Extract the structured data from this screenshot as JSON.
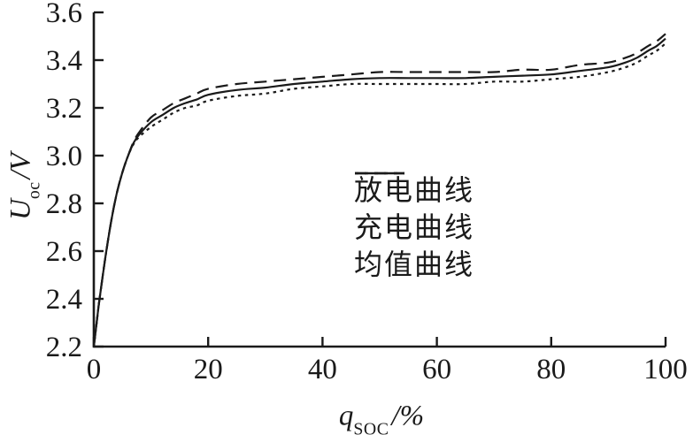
{
  "figure": {
    "background": "#ffffff",
    "ink_color": "#1a1a1a"
  },
  "chart_data": {
    "type": "line",
    "title": "",
    "xlabel": {
      "symbol": "q",
      "subscript": "SOC",
      "unit": "/%"
    },
    "ylabel": {
      "symbol": "U",
      "subscript": "oc",
      "unit": "/V"
    },
    "xlim": [
      0,
      100
    ],
    "ylim": [
      2.2,
      3.6
    ],
    "x_ticks": [
      0,
      20,
      40,
      60,
      80,
      100
    ],
    "y_ticks": [
      2.2,
      2.4,
      2.6,
      2.8,
      3.0,
      3.2,
      3.4,
      3.6
    ],
    "grid": false,
    "legend_position": "inside-center-right",
    "x": [
      0,
      0.5,
      1,
      2,
      3,
      4,
      5,
      6,
      7,
      8,
      10,
      12,
      14,
      16,
      18,
      20,
      25,
      30,
      35,
      40,
      45,
      50,
      55,
      60,
      65,
      70,
      75,
      80,
      85,
      90,
      93,
      95,
      97,
      98.5,
      100
    ],
    "series": [
      {
        "name": "放电曲线",
        "name_en": "discharge curve",
        "style": "dotted",
        "values": [
          2.2,
          2.3,
          2.4,
          2.57,
          2.72,
          2.84,
          2.93,
          3.0,
          3.05,
          3.08,
          3.12,
          3.15,
          3.18,
          3.2,
          3.21,
          3.23,
          3.25,
          3.26,
          3.28,
          3.29,
          3.3,
          3.3,
          3.3,
          3.3,
          3.3,
          3.31,
          3.31,
          3.32,
          3.33,
          3.35,
          3.37,
          3.39,
          3.42,
          3.44,
          3.47
        ]
      },
      {
        "name": "充电曲线",
        "name_en": "charge curve",
        "style": "dashed",
        "values": [
          2.2,
          2.3,
          2.4,
          2.57,
          2.72,
          2.84,
          2.93,
          3.0,
          3.06,
          3.1,
          3.16,
          3.19,
          3.22,
          3.24,
          3.26,
          3.28,
          3.3,
          3.31,
          3.32,
          3.33,
          3.34,
          3.35,
          3.35,
          3.35,
          3.35,
          3.35,
          3.36,
          3.36,
          3.38,
          3.39,
          3.41,
          3.43,
          3.46,
          3.48,
          3.51
        ]
      },
      {
        "name": "均值曲线",
        "name_en": "mean curve",
        "style": "solid",
        "values": [
          2.2,
          2.3,
          2.4,
          2.57,
          2.72,
          2.84,
          2.93,
          3.0,
          3.055,
          3.09,
          3.14,
          3.17,
          3.2,
          3.22,
          3.235,
          3.255,
          3.275,
          3.285,
          3.3,
          3.31,
          3.32,
          3.325,
          3.325,
          3.325,
          3.325,
          3.33,
          3.335,
          3.34,
          3.355,
          3.37,
          3.39,
          3.41,
          3.44,
          3.46,
          3.49
        ]
      }
    ]
  }
}
